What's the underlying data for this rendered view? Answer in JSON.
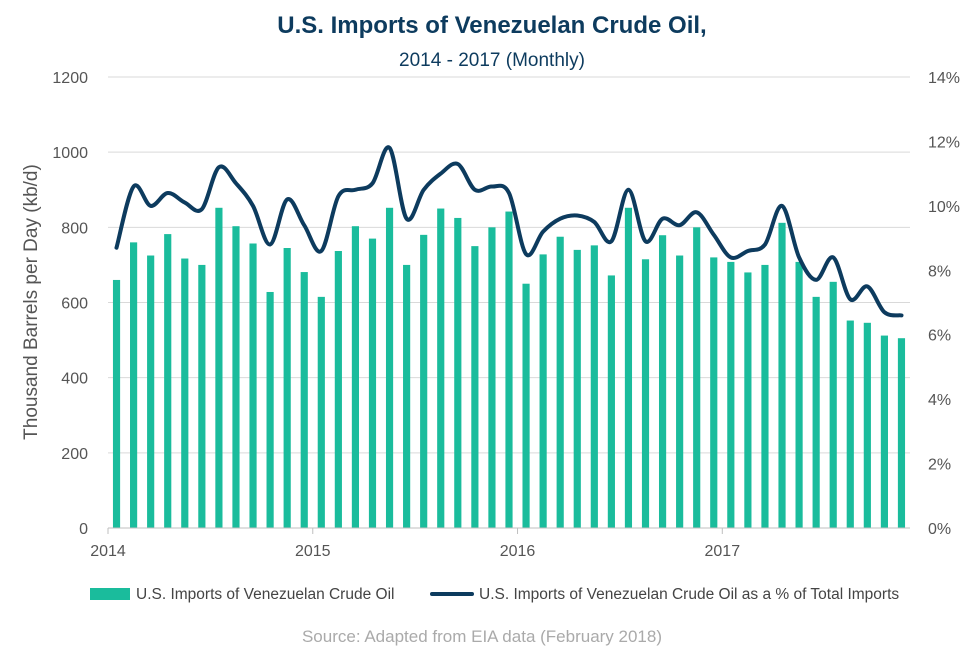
{
  "chart_data": {
    "type": "bar",
    "title": "U.S. Imports of Venezuelan Crude Oil,",
    "subtitle": "2014 - 2017 (Monthly)",
    "ylabel": "Thousand Barrels per Day (kb/d)",
    "xlabel": "",
    "ylim": [
      0,
      1200
    ],
    "y_ticks": [
      "0",
      "200",
      "400",
      "600",
      "800",
      "1000",
      "1200"
    ],
    "y2lim": [
      0,
      14
    ],
    "y2_ticks": [
      "0%",
      "2%",
      "4%",
      "6%",
      "8%",
      "10%",
      "12%",
      "14%"
    ],
    "x_ticks": [
      {
        "label": "2014",
        "month_index": 0
      },
      {
        "label": "2015",
        "month_index": 12
      },
      {
        "label": "2016",
        "month_index": 24
      },
      {
        "label": "2017",
        "month_index": 36
      }
    ],
    "categories": [
      "2014-01",
      "2014-02",
      "2014-03",
      "2014-04",
      "2014-05",
      "2014-06",
      "2014-07",
      "2014-08",
      "2014-09",
      "2014-10",
      "2014-11",
      "2014-12",
      "2015-01",
      "2015-02",
      "2015-03",
      "2015-04",
      "2015-05",
      "2015-06",
      "2015-07",
      "2015-08",
      "2015-09",
      "2015-10",
      "2015-11",
      "2015-12",
      "2016-01",
      "2016-02",
      "2016-03",
      "2016-04",
      "2016-05",
      "2016-06",
      "2016-07",
      "2016-08",
      "2016-09",
      "2016-10",
      "2016-11",
      "2016-12",
      "2017-01",
      "2017-02",
      "2017-03",
      "2017-04",
      "2017-05",
      "2017-06",
      "2017-07",
      "2017-08",
      "2017-09",
      "2017-10",
      "2017-11"
    ],
    "grid": true,
    "legend_position": "bottom",
    "series": [
      {
        "name": "U.S. Imports of Venezuelan Crude Oil",
        "type": "bar",
        "axis": "left",
        "color": "#1abc9c",
        "values": [
          660,
          760,
          725,
          782,
          717,
          700,
          852,
          803,
          757,
          628,
          745,
          681,
          615,
          737,
          803,
          770,
          852,
          700,
          780,
          850,
          825,
          750,
          800,
          842,
          650,
          728,
          775,
          740,
          752,
          672,
          852,
          715,
          779,
          725,
          800,
          720,
          708,
          680,
          700,
          812,
          708,
          615,
          655,
          552,
          546,
          512,
          505
        ]
      },
      {
        "name": "U.S. Imports of Venezuelan Crude Oil as a % of Total Imports",
        "type": "line",
        "axis": "right",
        "color": "#0d3b5e",
        "values": [
          8.7,
          10.6,
          10.0,
          10.4,
          10.1,
          9.9,
          11.2,
          10.7,
          10.0,
          8.8,
          10.2,
          9.4,
          8.6,
          10.3,
          10.5,
          10.7,
          11.8,
          9.6,
          10.5,
          11.0,
          11.3,
          10.5,
          10.6,
          10.4,
          8.5,
          9.2,
          9.6,
          9.7,
          9.5,
          8.9,
          10.5,
          8.9,
          9.6,
          9.4,
          9.8,
          9.1,
          8.4,
          8.6,
          8.8,
          10.0,
          8.4,
          7.7,
          8.4,
          7.1,
          7.5,
          6.7,
          6.6
        ]
      }
    ]
  },
  "source": "Source: Adapted from EIA data (February 2018)"
}
